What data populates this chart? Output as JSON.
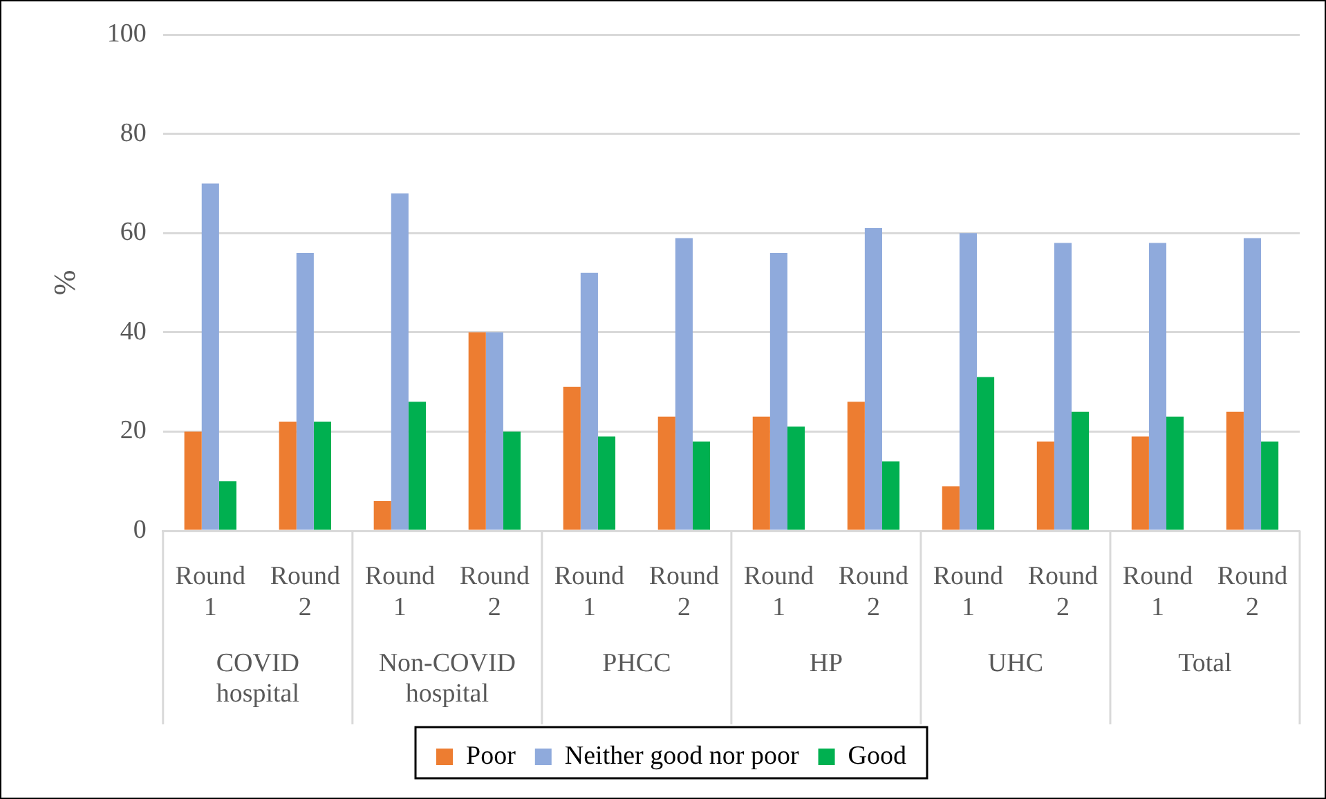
{
  "chart_data": {
    "type": "bar",
    "ylabel": "%",
    "categories": [
      "Round 1",
      "Round 2",
      "Round 1",
      "Round 2",
      "Round 1",
      "Round 2",
      "Round 1",
      "Round 2",
      "Round 1",
      "Round 2",
      "Round 1",
      "Round 2"
    ],
    "annotations": [
      "COVID hospital",
      "Non-COVID hospital",
      "PHCC",
      "HP",
      "UHC",
      "Total"
    ],
    "series": [
      {
        "name": "Poor",
        "color": "#ed7d31",
        "values": [
          20,
          22,
          6,
          40,
          29,
          23,
          23,
          26,
          9,
          18,
          19,
          24
        ]
      },
      {
        "name": "Neither good nor poor",
        "color": "#8faadc",
        "values": [
          70,
          56,
          68,
          40,
          52,
          59,
          56,
          61,
          60,
          58,
          58,
          59
        ]
      },
      {
        "name": "Good",
        "color": "#00b050",
        "values": [
          10,
          22,
          26,
          20,
          19,
          18,
          21,
          14,
          31,
          24,
          23,
          18
        ]
      }
    ],
    "ylim": [
      0,
      100
    ],
    "yticks": [
      0,
      20,
      40,
      60,
      80,
      100
    ],
    "grid": "y",
    "legend": "bottom"
  }
}
